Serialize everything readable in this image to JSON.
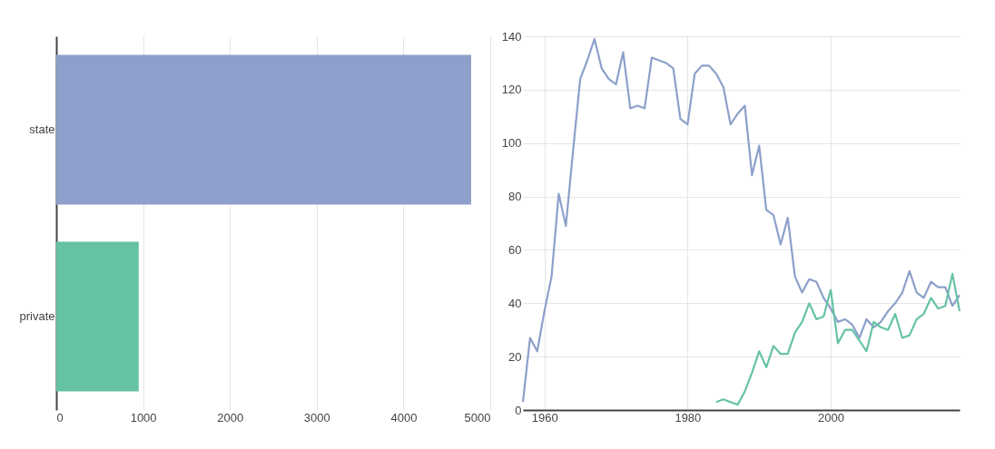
{
  "chart_data": [
    {
      "type": "bar",
      "orientation": "horizontal",
      "categories": [
        "state",
        "private"
      ],
      "values": [
        4780,
        950
      ],
      "colors": [
        "#8da0cb",
        "#66c2a5"
      ],
      "xlim": [
        0,
        5000
      ],
      "xticks": [
        0,
        1000,
        2000,
        3000,
        4000,
        5000
      ],
      "grid": "x"
    },
    {
      "type": "line",
      "xlim": [
        1957,
        2018
      ],
      "xticks": [
        1960,
        1980,
        2000
      ],
      "ylim": [
        0,
        140
      ],
      "yticks": [
        0,
        20,
        40,
        60,
        80,
        100,
        120,
        140
      ],
      "grid": true,
      "series": [
        {
          "color": "#8da0cb",
          "x": [
            1957,
            1958,
            1959,
            1960,
            1961,
            1962,
            1963,
            1964,
            1965,
            1966,
            1967,
            1968,
            1969,
            1970,
            1971,
            1972,
            1973,
            1974,
            1975,
            1976,
            1977,
            1978,
            1979,
            1980,
            1981,
            1982,
            1983,
            1984,
            1985,
            1986,
            1987,
            1988,
            1989,
            1990,
            1991,
            1992,
            1993,
            1994,
            1995,
            1996,
            1997,
            1998,
            1999,
            2000,
            2001,
            2002,
            2003,
            2004,
            2005,
            2006,
            2007,
            2008,
            2009,
            2010,
            2011,
            2012,
            2013,
            2014,
            2015,
            2016,
            2017,
            2018
          ],
          "values": [
            3,
            27,
            22,
            37,
            50,
            81,
            69,
            97,
            124,
            131,
            139,
            128,
            124,
            122,
            134,
            113,
            114,
            113,
            132,
            131,
            130,
            128,
            109,
            107,
            126,
            129,
            129,
            126,
            121,
            107,
            111,
            114,
            88,
            99,
            75,
            73,
            62,
            72,
            50,
            44,
            49,
            48,
            42,
            38,
            33,
            34,
            32,
            27,
            34,
            31,
            33,
            37,
            40,
            44,
            52,
            44,
            42,
            48,
            46,
            46,
            39,
            43
          ]
        },
        {
          "color": "#66c2a5",
          "x": [
            1984,
            1985,
            1986,
            1987,
            1988,
            1989,
            1990,
            1991,
            1992,
            1993,
            1994,
            1995,
            1996,
            1997,
            1998,
            1999,
            2000,
            2001,
            2002,
            2003,
            2004,
            2005,
            2006,
            2007,
            2008,
            2009,
            2010,
            2011,
            2012,
            2013,
            2014,
            2015,
            2016,
            2017,
            2018
          ],
          "values": [
            3,
            4,
            3,
            2,
            7,
            14,
            22,
            16,
            24,
            21,
            21,
            29,
            33,
            40,
            34,
            35,
            45,
            25,
            30,
            30,
            26,
            22,
            33,
            31,
            30,
            36,
            27,
            28,
            34,
            36,
            42,
            38,
            39,
            51,
            37
          ]
        }
      ]
    }
  ]
}
